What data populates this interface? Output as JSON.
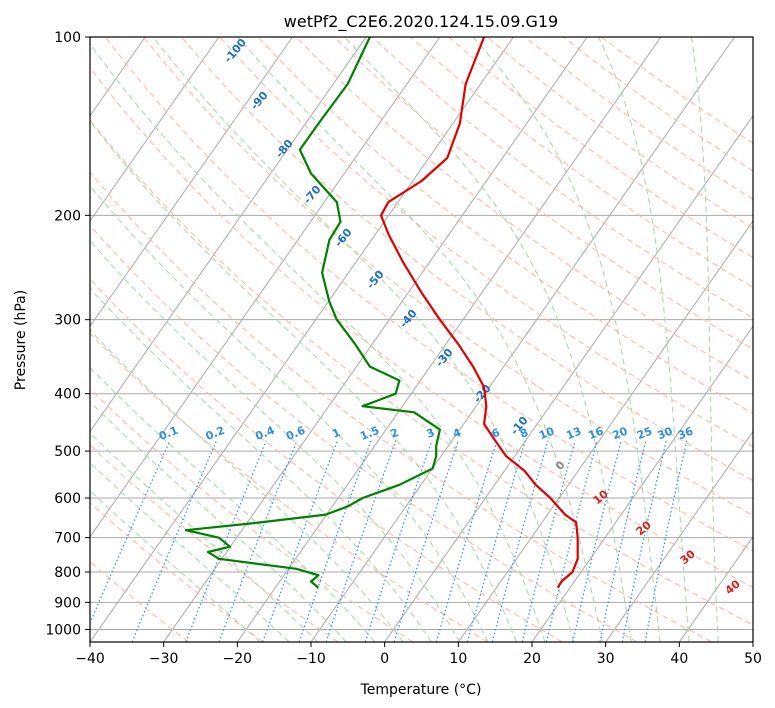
{
  "chart_data": {
    "type": "skew-t",
    "title": "wetPf2_C2E6.2020.124.15.09.G19",
    "xlabel": "Temperature (°C)",
    "ylabel": "Pressure (hPa)",
    "xlim": [
      -40,
      50
    ],
    "ylim": [
      1050,
      100
    ],
    "x_ticks": [
      -40,
      -30,
      -20,
      -10,
      0,
      10,
      20,
      30,
      40,
      50
    ],
    "x_tick_labels": [
      "−40",
      "−30",
      "−20",
      "−10",
      "0",
      "10",
      "20",
      "30",
      "40",
      "50"
    ],
    "y_ticks": [
      100,
      200,
      300,
      400,
      500,
      600,
      700,
      800,
      900,
      1000
    ],
    "y_tick_labels": [
      "100",
      "200",
      "300",
      "400",
      "500",
      "600",
      "700",
      "800",
      "900",
      "1000"
    ],
    "grid": true,
    "colors": {
      "temperature": "#e00000",
      "dewpoint": "#008000",
      "isotherm": "#aaaaaa",
      "dry_adiabat": "#f7b7a3",
      "moist_adiabat": "#a8d5a8",
      "mixing_ratio": "#2f8fdf",
      "wetbulb_iso": "#1f6fbf",
      "freezing": "#888888",
      "warm_iso": "#d02020"
    },
    "temperature_profile": [
      [
        100,
        13.5
      ],
      [
        120,
        11
      ],
      [
        140,
        10.2
      ],
      [
        160,
        8.5
      ],
      [
        175,
        5
      ],
      [
        190,
        0.5
      ],
      [
        200,
        -0.5
      ],
      [
        215,
        0.5
      ],
      [
        240,
        2.5
      ],
      [
        270,
        5
      ],
      [
        300,
        7.5
      ],
      [
        330,
        10
      ],
      [
        360,
        12
      ],
      [
        390,
        13.5
      ],
      [
        420,
        13.8
      ],
      [
        450,
        13.5
      ],
      [
        480,
        15
      ],
      [
        510,
        16.5
      ],
      [
        540,
        19
      ],
      [
        570,
        20.5
      ],
      [
        600,
        22.5
      ],
      [
        640,
        24.5
      ],
      [
        660,
        26
      ],
      [
        700,
        26.2
      ],
      [
        760,
        26.2
      ],
      [
        800,
        25.5
      ],
      [
        830,
        24
      ],
      [
        850,
        23.5
      ]
    ],
    "dewpoint_profile": [
      [
        100,
        -2
      ],
      [
        120,
        -5
      ],
      [
        140,
        -9
      ],
      [
        155,
        -11.5
      ],
      [
        170,
        -10
      ],
      [
        190,
        -6.5
      ],
      [
        205,
        -6
      ],
      [
        220,
        -7.5
      ],
      [
        250,
        -8.5
      ],
      [
        280,
        -7.5
      ],
      [
        300,
        -6.5
      ],
      [
        330,
        -4
      ],
      [
        360,
        -2
      ],
      [
        380,
        2
      ],
      [
        400,
        1.5
      ],
      [
        420,
        -3
      ],
      [
        430,
        4
      ],
      [
        460,
        7.5
      ],
      [
        490,
        7
      ],
      [
        510,
        7
      ],
      [
        535,
        6.5
      ],
      [
        570,
        2
      ],
      [
        600,
        -3
      ],
      [
        620,
        -5
      ],
      [
        640,
        -8
      ],
      [
        660,
        -17
      ],
      [
        680,
        -27
      ],
      [
        700,
        -22.5
      ],
      [
        725,
        -21
      ],
      [
        740,
        -24
      ],
      [
        760,
        -22.5
      ],
      [
        790,
        -12
      ],
      [
        810,
        -9
      ],
      [
        830,
        -10
      ],
      [
        850,
        -9
      ]
    ],
    "isotherm_labels": {
      "cold": [
        "-100",
        "-90",
        "-80",
        "-70",
        "-60",
        "-50",
        "-40",
        "-30",
        "-20",
        "-10"
      ],
      "freezing": "0",
      "warm": [
        "10",
        "20",
        "30",
        "40"
      ]
    },
    "mixing_ratio_labels": [
      "0.1",
      "0.2",
      "0.4",
      "0.6",
      "1",
      "1.5",
      "2",
      "3",
      "4",
      "6",
      "8",
      "10",
      "13",
      "16",
      "20",
      "25",
      "30",
      "36"
    ]
  }
}
